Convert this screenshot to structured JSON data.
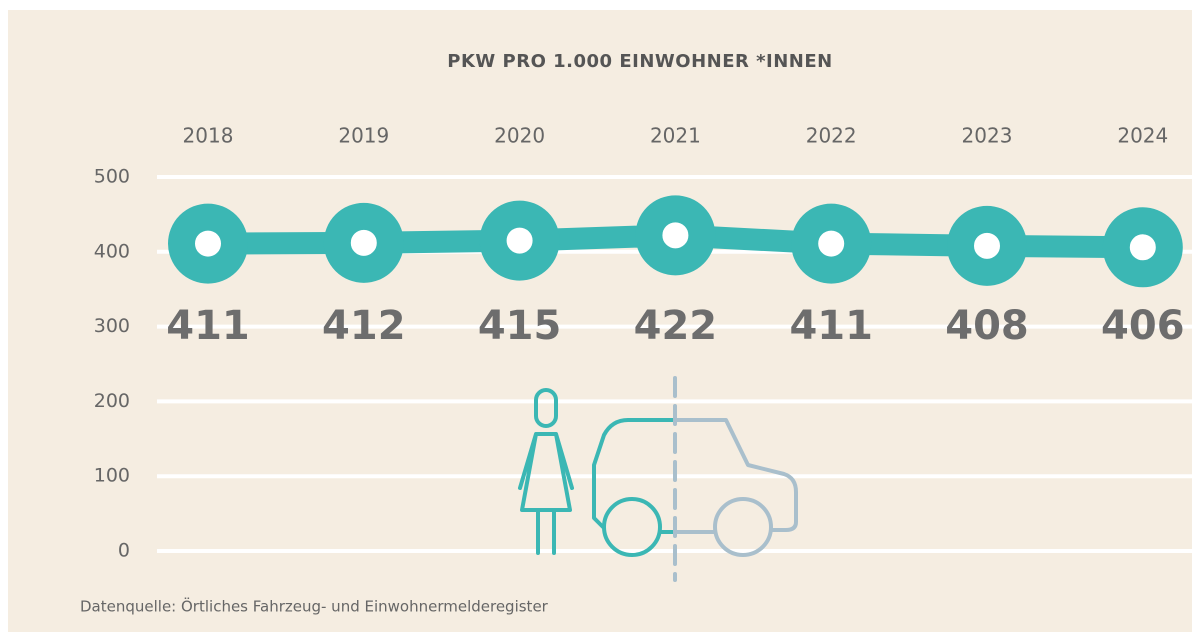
{
  "chart_data": {
    "type": "line",
    "title": "PKW PRO 1.000 EINWOHNER *INNEN",
    "categories": [
      "2018",
      "2019",
      "2020",
      "2021",
      "2022",
      "2023",
      "2024"
    ],
    "values": [
      411,
      412,
      415,
      422,
      411,
      408,
      406
    ],
    "color": "#3bb7b4",
    "ylim": [
      0,
      500
    ],
    "yticks": [
      0,
      100,
      200,
      300,
      400,
      500
    ],
    "grid": true,
    "source": "Datenquelle: Örtliches Fahrzeug- und Einwohnermelderegister"
  }
}
